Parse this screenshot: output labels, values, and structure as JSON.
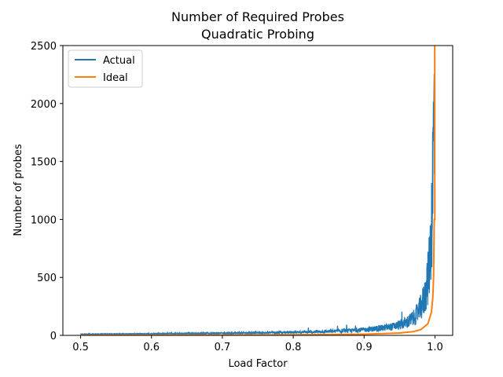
{
  "chart_data": {
    "type": "line",
    "title": "Number of Required Probes",
    "subtitle": "Quadratic Probing",
    "xlabel": "Load Factor",
    "ylabel": "Number of probes",
    "xlim": [
      0.475,
      1.025
    ],
    "ylim": [
      0,
      2500
    ],
    "xticks": [
      "0.5",
      "0.6",
      "0.7",
      "0.8",
      "0.9",
      "1.0"
    ],
    "yticks": [
      "0",
      "500",
      "1000",
      "1500",
      "2000",
      "2500"
    ],
    "grid": false,
    "legend_position": "upper-left",
    "series": [
      {
        "name": "Actual",
        "color": "#1f77b4",
        "style": "noisy",
        "x": [
          0.5,
          0.55,
          0.6,
          0.65,
          0.7,
          0.75,
          0.8,
          0.85,
          0.88,
          0.9,
          0.92,
          0.94,
          0.95,
          0.96,
          0.97,
          0.975,
          0.98,
          0.985,
          0.99,
          0.993,
          0.995,
          0.997,
          0.998,
          0.999,
          1.0
        ],
        "y": [
          15,
          18,
          20,
          23,
          26,
          30,
          36,
          45,
          55,
          65,
          80,
          100,
          120,
          150,
          200,
          250,
          320,
          420,
          650,
          900,
          1300,
          1800,
          2300,
          2500,
          2500
        ]
      },
      {
        "name": "Ideal",
        "color": "#ff7f0e",
        "style": "smooth",
        "x": [
          0.5,
          0.6,
          0.7,
          0.8,
          0.9,
          0.95,
          0.97,
          0.98,
          0.99,
          0.995,
          0.997,
          0.998,
          0.999
        ],
        "y": [
          2,
          2.5,
          3.3,
          5,
          10,
          20,
          33,
          50,
          100,
          200,
          333,
          500,
          1000
        ]
      }
    ]
  }
}
